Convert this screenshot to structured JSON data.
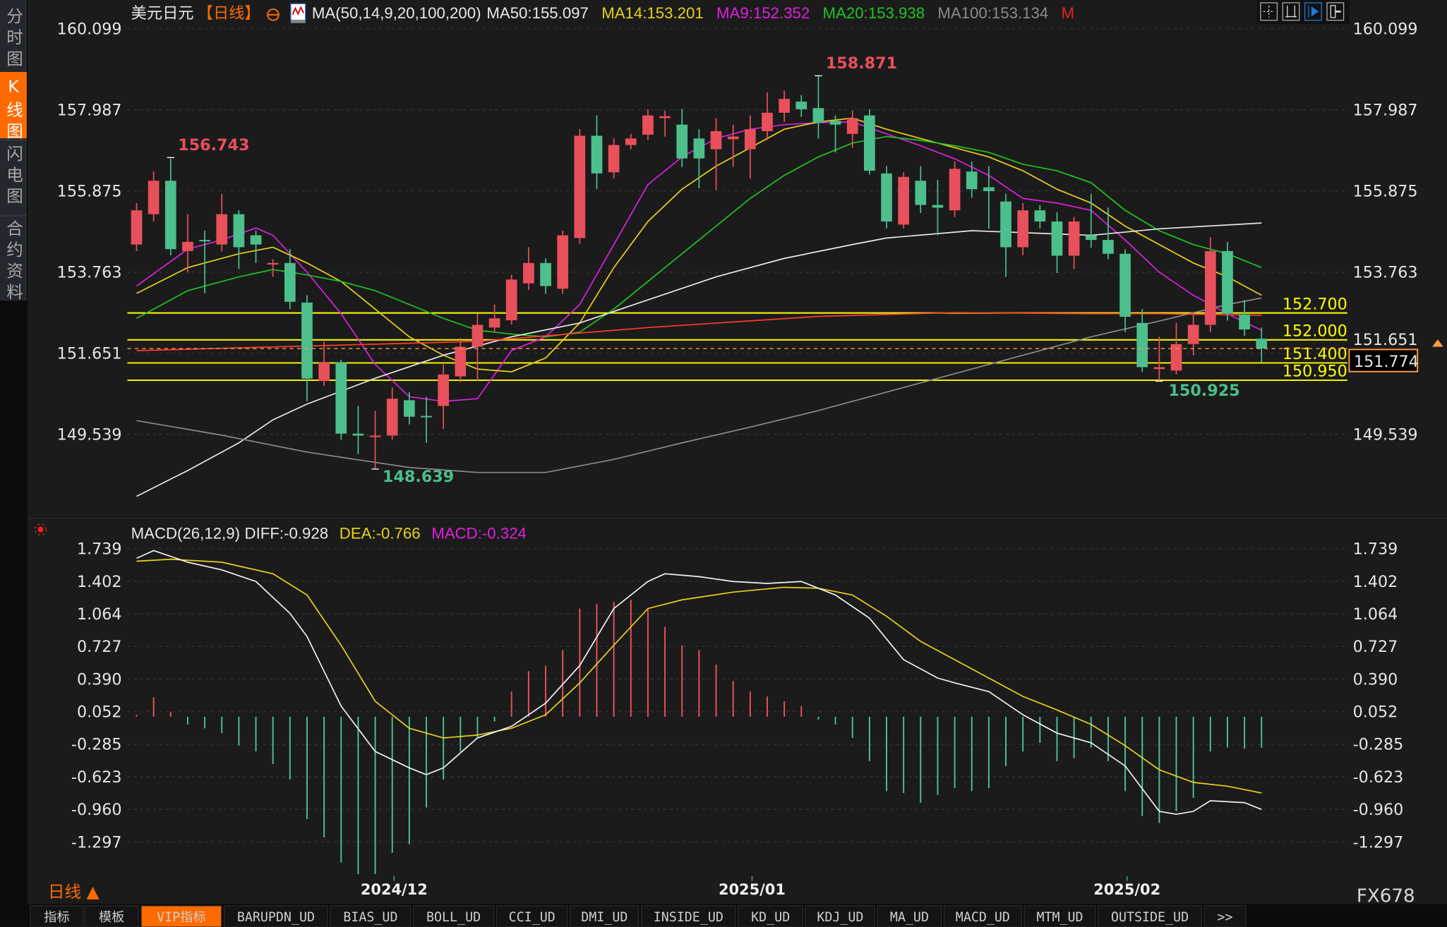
{
  "colors": {
    "up": "#e8505b",
    "down": "#4cbf8d",
    "ma50": "#e8e8e8",
    "ma14": "#e6d21c",
    "ma9": "#e020e0",
    "ma20": "#22c322",
    "ma100": "#8a8a8a",
    "ma200": "#ff3b2f",
    "diff": "#f0f0f0",
    "dea": "#e6d21c",
    "level": "#ffff00",
    "accent": "#ff6a00"
  },
  "sidebar": {
    "items": [
      {
        "label": "分时图",
        "active": false
      },
      {
        "label": "K线图",
        "active": true
      },
      {
        "label": "闪电图",
        "active": false
      },
      {
        "label": "合约资料",
        "active": false
      }
    ]
  },
  "header": {
    "symbol": "美元日元",
    "period": "【日线】",
    "settings_icon": "crosshair-circle-icon",
    "ma_params": "MA(50,14,9,20,100,200)",
    "ma50": "MA50:155.097",
    "ma14": "MA14:153.201",
    "ma9": "MA9:152.352",
    "ma20": "MA20:153.938",
    "ma100": "MA100:153.134",
    "m_flag": "M"
  },
  "toolbar": {
    "icons": [
      "crosshair-icon",
      "range-icon",
      "draw-icon",
      "exit-icon"
    ]
  },
  "price_axis": [
    "160.099",
    "157.987",
    "155.875",
    "153.763",
    "151.651",
    "149.539"
  ],
  "macd_axis": [
    "1.739",
    "1.402",
    "1.064",
    "0.727",
    "0.390",
    "0.052",
    "-0.285",
    "-0.623",
    "-0.960",
    "-1.297"
  ],
  "current_price": "151.774",
  "levels": [
    "152.700",
    "152.000",
    "151.400",
    "150.950"
  ],
  "annotations": {
    "high": "158.871",
    "left_high": "156.743",
    "low": "148.639",
    "right_low": "150.925"
  },
  "macd_header": {
    "params": "MACD(26,12,9)",
    "diff": "DIFF:-0.928",
    "dea": "DEA:-0.766",
    "macd": "MACD:-0.324"
  },
  "x_labels": [
    {
      "label": "2024/12",
      "index": 15
    },
    {
      "label": "2025/01",
      "index": 36
    },
    {
      "label": "2025/02",
      "index": 58
    }
  ],
  "period_selector": "日线 ▲",
  "watermark": "FX678",
  "bottom_tabs": [
    "指标",
    "模板",
    "VIP指标",
    "BARUPDN_UD",
    "BIAS_UD",
    "BOLL_UD",
    "CCI_UD",
    "DMI_UD",
    "INSIDE_UD",
    "KD_UD",
    "KDJ_UD",
    "MA_UD",
    "MACD_UD",
    "MTM_UD",
    "OUTSIDE_UD",
    ">>"
  ],
  "active_tab": "VIP指标",
  "chart_data": {
    "type": "candlestick",
    "ylim": [
      148.3,
      160.099
    ],
    "candles_ohlc": [
      [
        154.48,
        155.56,
        154.31,
        155.37
      ],
      [
        155.27,
        156.38,
        155.08,
        156.14
      ],
      [
        156.14,
        156.72,
        154.2,
        154.36
      ],
      [
        154.31,
        155.27,
        153.76,
        154.55
      ],
      [
        154.6,
        154.84,
        153.21,
        154.58
      ],
      [
        154.48,
        155.8,
        154.3,
        155.27
      ],
      [
        155.27,
        155.37,
        153.84,
        154.41
      ],
      [
        154.72,
        154.84,
        154.0,
        154.48
      ],
      [
        153.96,
        154.1,
        153.64,
        154.0
      ],
      [
        154.0,
        154.36,
        152.8,
        152.99
      ],
      [
        152.97,
        153.16,
        150.4,
        150.99
      ],
      [
        150.93,
        151.96,
        150.8,
        151.41
      ],
      [
        151.41,
        151.48,
        149.4,
        149.56
      ],
      [
        149.56,
        150.28,
        149.03,
        149.51
      ],
      [
        149.47,
        150.16,
        148.639,
        149.51
      ],
      [
        149.51,
        150.76,
        149.4,
        150.47
      ],
      [
        150.43,
        150.64,
        149.8,
        150.0
      ],
      [
        150.02,
        150.52,
        149.32,
        150.0
      ],
      [
        150.28,
        151.36,
        149.68,
        151.1
      ],
      [
        151.05,
        152.05,
        150.9,
        151.82
      ],
      [
        151.82,
        152.68,
        150.94,
        152.39
      ],
      [
        152.32,
        152.92,
        152.2,
        152.56
      ],
      [
        152.51,
        153.69,
        152.4,
        153.57
      ],
      [
        153.47,
        154.41,
        153.3,
        154.0
      ],
      [
        154.0,
        154.12,
        153.2,
        153.4
      ],
      [
        153.33,
        154.84,
        153.2,
        154.72
      ],
      [
        154.65,
        157.48,
        154.5,
        157.31
      ],
      [
        157.31,
        157.84,
        155.92,
        156.33
      ],
      [
        156.36,
        157.24,
        156.2,
        157.07
      ],
      [
        157.07,
        157.36,
        156.96,
        157.24
      ],
      [
        157.34,
        158.0,
        157.2,
        157.84
      ],
      [
        157.77,
        157.96,
        157.29,
        157.82
      ],
      [
        157.6,
        158.01,
        156.5,
        156.72
      ],
      [
        157.24,
        157.48,
        155.94,
        156.72
      ],
      [
        156.96,
        157.77,
        155.9,
        157.43
      ],
      [
        157.22,
        157.6,
        156.5,
        157.29
      ],
      [
        156.96,
        157.84,
        156.2,
        157.48
      ],
      [
        157.43,
        158.44,
        157.2,
        157.91
      ],
      [
        157.91,
        158.49,
        157.67,
        158.27
      ],
      [
        158.2,
        158.37,
        157.8,
        158.0
      ],
      [
        158.03,
        158.871,
        157.24,
        157.65
      ],
      [
        157.7,
        157.84,
        156.88,
        157.6
      ],
      [
        157.36,
        157.96,
        157.0,
        157.77
      ],
      [
        157.84,
        158.0,
        156.3,
        156.4
      ],
      [
        156.33,
        156.52,
        154.9,
        155.08
      ],
      [
        155.0,
        156.36,
        154.9,
        156.24
      ],
      [
        156.14,
        156.52,
        155.3,
        155.51
      ],
      [
        155.51,
        156.16,
        154.72,
        155.44
      ],
      [
        155.37,
        156.64,
        155.2,
        156.45
      ],
      [
        156.38,
        156.64,
        155.7,
        155.92
      ],
      [
        155.97,
        156.52,
        154.89,
        155.87
      ],
      [
        155.6,
        155.8,
        153.64,
        154.41
      ],
      [
        154.41,
        155.56,
        154.2,
        155.37
      ],
      [
        155.37,
        155.51,
        154.9,
        155.08
      ],
      [
        155.08,
        155.32,
        153.74,
        154.19
      ],
      [
        154.19,
        155.2,
        153.84,
        155.08
      ],
      [
        154.72,
        155.8,
        154.4,
        154.6
      ],
      [
        154.6,
        155.44,
        154.1,
        154.24
      ],
      [
        154.24,
        154.36,
        152.2,
        152.6
      ],
      [
        152.44,
        152.8,
        151.17,
        151.29
      ],
      [
        151.24,
        152.08,
        150.925,
        151.29
      ],
      [
        151.2,
        152.44,
        151.1,
        151.89
      ],
      [
        151.89,
        152.68,
        151.6,
        152.39
      ],
      [
        152.39,
        154.67,
        152.2,
        154.31
      ],
      [
        154.31,
        154.55,
        152.5,
        152.68
      ],
      [
        152.66,
        153.04,
        152.1,
        152.27
      ],
      [
        152.03,
        152.32,
        151.41,
        151.774
      ]
    ],
    "ma_series": {
      "ma9": [
        [
          0,
          153.4
        ],
        [
          3,
          154.36
        ],
        [
          5,
          154.6
        ],
        [
          7,
          154.91
        ],
        [
          8,
          154.72
        ],
        [
          10,
          153.76
        ],
        [
          12,
          152.68
        ],
        [
          14,
          151.36
        ],
        [
          16,
          150.52
        ],
        [
          18,
          150.4
        ],
        [
          20,
          150.47
        ],
        [
          22,
          151.72
        ],
        [
          24,
          152.08
        ],
        [
          26,
          152.92
        ],
        [
          28,
          154.48
        ],
        [
          30,
          156.04
        ],
        [
          32,
          156.76
        ],
        [
          34,
          157.24
        ],
        [
          36,
          157.48
        ],
        [
          38,
          157.6
        ],
        [
          40,
          157.65
        ],
        [
          42,
          157.67
        ],
        [
          44,
          157.36
        ],
        [
          46,
          157.05
        ],
        [
          48,
          156.71
        ],
        [
          50,
          156.28
        ],
        [
          52,
          155.68
        ],
        [
          54,
          155.56
        ],
        [
          56,
          155.37
        ],
        [
          58,
          154.6
        ],
        [
          60,
          153.76
        ],
        [
          62,
          153.16
        ],
        [
          64,
          152.68
        ],
        [
          66,
          152.25
        ]
      ],
      "ma14": [
        [
          0,
          153.21
        ],
        [
          3,
          153.88
        ],
        [
          6,
          154.24
        ],
        [
          8,
          154.41
        ],
        [
          10,
          154.0
        ],
        [
          12,
          153.52
        ],
        [
          14,
          152.8
        ],
        [
          16,
          152.08
        ],
        [
          18,
          151.6
        ],
        [
          20,
          151.24
        ],
        [
          22,
          151.17
        ],
        [
          24,
          151.53
        ],
        [
          26,
          152.44
        ],
        [
          28,
          153.88
        ],
        [
          30,
          155.08
        ],
        [
          32,
          155.92
        ],
        [
          34,
          156.52
        ],
        [
          36,
          157.0
        ],
        [
          38,
          157.48
        ],
        [
          40,
          157.67
        ],
        [
          42,
          157.77
        ],
        [
          44,
          157.48
        ],
        [
          46,
          157.24
        ],
        [
          48,
          157.0
        ],
        [
          50,
          156.76
        ],
        [
          52,
          156.4
        ],
        [
          54,
          155.92
        ],
        [
          56,
          155.56
        ],
        [
          58,
          154.96
        ],
        [
          60,
          154.48
        ],
        [
          62,
          154.0
        ],
        [
          64,
          153.64
        ],
        [
          66,
          153.16
        ]
      ],
      "ma20": [
        [
          0,
          152.56
        ],
        [
          3,
          153.28
        ],
        [
          6,
          153.64
        ],
        [
          8,
          153.83
        ],
        [
          10,
          153.69
        ],
        [
          12,
          153.52
        ],
        [
          14,
          153.28
        ],
        [
          16,
          152.92
        ],
        [
          18,
          152.56
        ],
        [
          20,
          152.25
        ],
        [
          22,
          152.15
        ],
        [
          24,
          152.08
        ],
        [
          26,
          152.2
        ],
        [
          28,
          152.8
        ],
        [
          30,
          153.52
        ],
        [
          32,
          154.24
        ],
        [
          34,
          154.96
        ],
        [
          36,
          155.68
        ],
        [
          38,
          156.28
        ],
        [
          40,
          156.76
        ],
        [
          42,
          157.12
        ],
        [
          44,
          157.29
        ],
        [
          46,
          157.19
        ],
        [
          48,
          157.05
        ],
        [
          50,
          156.88
        ],
        [
          52,
          156.57
        ],
        [
          54,
          156.4
        ],
        [
          56,
          156.09
        ],
        [
          58,
          155.37
        ],
        [
          60,
          154.84
        ],
        [
          62,
          154.48
        ],
        [
          64,
          154.24
        ],
        [
          66,
          153.88
        ]
      ],
      "ma50": [
        [
          0,
          147.93
        ],
        [
          3,
          148.6
        ],
        [
          6,
          149.32
        ],
        [
          8,
          149.92
        ],
        [
          10,
          150.33
        ],
        [
          14,
          151.0
        ],
        [
          18,
          151.6
        ],
        [
          22,
          152.08
        ],
        [
          26,
          152.44
        ],
        [
          30,
          153.04
        ],
        [
          34,
          153.64
        ],
        [
          38,
          154.12
        ],
        [
          42,
          154.48
        ],
        [
          44,
          154.65
        ],
        [
          49,
          154.84
        ],
        [
          52,
          154.79
        ],
        [
          56,
          154.72
        ],
        [
          60,
          154.89
        ],
        [
          66,
          155.04
        ]
      ],
      "ma100": [
        [
          0,
          149.9
        ],
        [
          5,
          149.52
        ],
        [
          10,
          149.08
        ],
        [
          16,
          148.68
        ],
        [
          20,
          148.55
        ],
        [
          24,
          148.55
        ],
        [
          28,
          148.89
        ],
        [
          32,
          149.32
        ],
        [
          36,
          149.73
        ],
        [
          40,
          150.16
        ],
        [
          44,
          150.64
        ],
        [
          48,
          151.12
        ],
        [
          52,
          151.6
        ],
        [
          56,
          152.08
        ],
        [
          60,
          152.49
        ],
        [
          64,
          152.92
        ],
        [
          66,
          153.09
        ]
      ],
      "ma200": [
        [
          0,
          151.72
        ],
        [
          10,
          151.84
        ],
        [
          20,
          151.96
        ],
        [
          30,
          152.32
        ],
        [
          40,
          152.61
        ],
        [
          48,
          152.71
        ],
        [
          56,
          152.68
        ],
        [
          60,
          152.68
        ],
        [
          66,
          152.64
        ]
      ]
    },
    "macd": {
      "ylim": [
        -1.7,
        1.8
      ],
      "histogram": [
        0.02,
        0.2,
        0.05,
        -0.08,
        -0.12,
        -0.17,
        -0.3,
        -0.36,
        -0.49,
        -0.65,
        -1.06,
        -1.25,
        -1.51,
        -1.63,
        -1.63,
        -1.41,
        -1.32,
        -0.94,
        -0.65,
        -0.36,
        -0.22,
        -0.05,
        0.26,
        0.47,
        0.53,
        0.69,
        1.12,
        1.17,
        1.19,
        1.21,
        1.12,
        0.93,
        0.74,
        0.69,
        0.54,
        0.37,
        0.26,
        0.21,
        0.16,
        0.11,
        -0.03,
        -0.08,
        -0.22,
        -0.46,
        -0.77,
        -0.79,
        -0.89,
        -0.81,
        -0.74,
        -0.77,
        -0.74,
        -0.51,
        -0.36,
        -0.27,
        -0.46,
        -0.43,
        -0.32,
        -0.46,
        -0.77,
        -1.03,
        -1.1,
        -0.98,
        -0.84,
        -0.36,
        -0.32,
        -0.33,
        -0.32
      ],
      "diff": [
        [
          0,
          1.64
        ],
        [
          1,
          1.72
        ],
        [
          3,
          1.6
        ],
        [
          5,
          1.52
        ],
        [
          7,
          1.4
        ],
        [
          9,
          1.07
        ],
        [
          10,
          0.83
        ],
        [
          12,
          0.11
        ],
        [
          14,
          -0.36
        ],
        [
          16,
          -0.53
        ],
        [
          17,
          -0.6
        ],
        [
          18,
          -0.53
        ],
        [
          20,
          -0.22
        ],
        [
          22,
          -0.1
        ],
        [
          24,
          0.14
        ],
        [
          26,
          0.53
        ],
        [
          28,
          1.12
        ],
        [
          30,
          1.4
        ],
        [
          31,
          1.48
        ],
        [
          33,
          1.45
        ],
        [
          35,
          1.4
        ],
        [
          37,
          1.38
        ],
        [
          39,
          1.4
        ],
        [
          41,
          1.26
        ],
        [
          43,
          1.02
        ],
        [
          45,
          0.59
        ],
        [
          47,
          0.4
        ],
        [
          48,
          0.35
        ],
        [
          50,
          0.26
        ],
        [
          52,
          0.02
        ],
        [
          54,
          -0.17
        ],
        [
          56,
          -0.27
        ],
        [
          58,
          -0.51
        ],
        [
          60,
          -0.98
        ],
        [
          61,
          -1.01
        ],
        [
          62,
          -0.98
        ],
        [
          63,
          -0.87
        ],
        [
          65,
          -0.89
        ],
        [
          66,
          -0.96
        ]
      ],
      "dea": [
        [
          0,
          1.61
        ],
        [
          2,
          1.63
        ],
        [
          5,
          1.6
        ],
        [
          8,
          1.48
        ],
        [
          10,
          1.26
        ],
        [
          12,
          0.74
        ],
        [
          14,
          0.16
        ],
        [
          16,
          -0.12
        ],
        [
          18,
          -0.22
        ],
        [
          20,
          -0.19
        ],
        [
          22,
          -0.12
        ],
        [
          24,
          0.02
        ],
        [
          26,
          0.35
        ],
        [
          28,
          0.74
        ],
        [
          30,
          1.12
        ],
        [
          32,
          1.21
        ],
        [
          35,
          1.29
        ],
        [
          38,
          1.34
        ],
        [
          40,
          1.33
        ],
        [
          42,
          1.26
        ],
        [
          44,
          1.04
        ],
        [
          46,
          0.78
        ],
        [
          48,
          0.59
        ],
        [
          50,
          0.4
        ],
        [
          52,
          0.21
        ],
        [
          54,
          0.07
        ],
        [
          56,
          -0.08
        ],
        [
          58,
          -0.3
        ],
        [
          60,
          -0.55
        ],
        [
          62,
          -0.68
        ],
        [
          64,
          -0.72
        ],
        [
          66,
          -0.79
        ]
      ]
    }
  }
}
